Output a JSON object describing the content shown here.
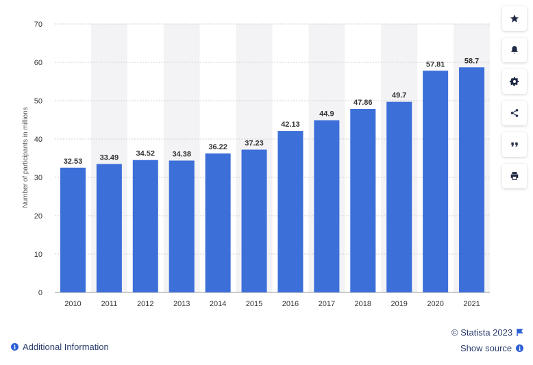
{
  "chart_data": {
    "type": "bar",
    "title": "",
    "xlabel": "",
    "ylabel": "Number of participants in millions",
    "categories": [
      "2010",
      "2011",
      "2012",
      "2013",
      "2014",
      "2015",
      "2016",
      "2017",
      "2018",
      "2019",
      "2020",
      "2021"
    ],
    "values": [
      32.53,
      33.49,
      34.52,
      34.38,
      36.22,
      37.23,
      42.13,
      44.9,
      47.86,
      49.7,
      57.81,
      58.7
    ],
    "data_labels": [
      "32.53",
      "33.49",
      "34.52",
      "34.38",
      "36.22",
      "37.23",
      "42.13",
      "44.9",
      "47.86",
      "49.7",
      "57.81",
      "58.7"
    ],
    "ylim": [
      0,
      70
    ],
    "yticks": [
      "0",
      "10",
      "20",
      "30",
      "40",
      "50",
      "60",
      "70"
    ],
    "grid": true,
    "bar_color": "#3d6fd9",
    "band_color": "#f3f3f6"
  },
  "sidebar_buttons": [
    {
      "icon": "star-icon"
    },
    {
      "icon": "bell-icon"
    },
    {
      "icon": "gear-icon"
    },
    {
      "icon": "share-icon"
    },
    {
      "icon": "quote-icon"
    },
    {
      "icon": "print-icon"
    }
  ],
  "footer": {
    "copyright": "© Statista 2023",
    "additional_info": "Additional Information",
    "show_source": "Show source"
  },
  "colors": {
    "accent": "#2b5ed6",
    "link_text": "#2b3d6d"
  }
}
